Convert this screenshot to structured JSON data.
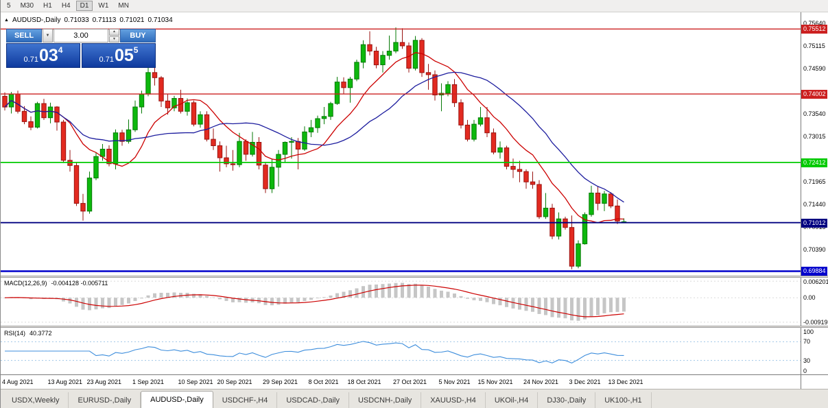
{
  "toolbar": {
    "timeframes": [
      {
        "label": "5",
        "active": false
      },
      {
        "label": "M30",
        "active": false
      },
      {
        "label": "H1",
        "active": false
      },
      {
        "label": "H4",
        "active": false
      },
      {
        "label": "D1",
        "active": true
      },
      {
        "label": "W1",
        "active": false
      },
      {
        "label": "MN",
        "active": false
      }
    ]
  },
  "header": {
    "symbol": "AUDUSD-,Daily",
    "open": "0.71033",
    "high": "0.71113",
    "low": "0.71021",
    "close": "0.71034"
  },
  "one_click": {
    "sell_label": "SELL",
    "buy_label": "BUY",
    "volume": "3.00",
    "sell_small": "0.71",
    "sell_big": "03",
    "sell_sup": "4",
    "buy_small": "0.71",
    "buy_big": "05",
    "buy_sup": "5"
  },
  "chart_data": {
    "type": "candlestick",
    "title": "AUDUSD-,Daily",
    "price_axis": {
      "min": 0.6978,
      "max": 0.759,
      "ticks": [
        {
          "label": "0.75640",
          "value": 0.7564
        },
        {
          "label": "0.75115",
          "value": 0.75115
        },
        {
          "label": "0.74590",
          "value": 0.7459
        },
        {
          "label": "0.73540",
          "value": 0.7354
        },
        {
          "label": "0.73015",
          "value": 0.73015
        },
        {
          "label": "0.71965",
          "value": 0.71965
        },
        {
          "label": "0.71440",
          "value": 0.7144
        },
        {
          "label": "0.70915",
          "value": 0.70915
        },
        {
          "label": "0.70390",
          "value": 0.7039
        }
      ]
    },
    "levels": [
      {
        "label": "0.75512",
        "value": 0.75512,
        "color": "#cc2020",
        "width": 1.4
      },
      {
        "label": "0.74002",
        "value": 0.74002,
        "color": "#cc2020",
        "width": 1.4
      },
      {
        "label": "0.72412",
        "value": 0.72412,
        "color": "#00ca00",
        "width": 1.8
      },
      {
        "label": "0.71012",
        "value": 0.71012,
        "color": "#000080",
        "width": 1.8
      },
      {
        "label": "0.69884",
        "value": 0.69884,
        "color": "#0000cc",
        "width": 2.6
      }
    ],
    "candles": [
      [
        0.7395,
        0.7404,
        0.7362,
        0.737
      ],
      [
        0.737,
        0.7405,
        0.7355,
        0.74
      ],
      [
        0.74,
        0.7408,
        0.7355,
        0.736
      ],
      [
        0.736,
        0.7372,
        0.733,
        0.7336
      ],
      [
        0.7336,
        0.7348,
        0.7316,
        0.7323
      ],
      [
        0.7323,
        0.7382,
        0.732,
        0.7378
      ],
      [
        0.7378,
        0.7389,
        0.734,
        0.7345
      ],
      [
        0.7345,
        0.738,
        0.7332,
        0.737
      ],
      [
        0.737,
        0.7372,
        0.7315,
        0.7335
      ],
      [
        0.7335,
        0.734,
        0.724,
        0.7246
      ],
      [
        0.7246,
        0.727,
        0.722,
        0.7234
      ],
      [
        0.7234,
        0.724,
        0.714,
        0.7146
      ],
      [
        0.7146,
        0.7168,
        0.7106,
        0.7128
      ],
      [
        0.7128,
        0.722,
        0.7122,
        0.7205
      ],
      [
        0.7205,
        0.7265,
        0.72,
        0.7255
      ],
      [
        0.7255,
        0.7284,
        0.7245,
        0.7272
      ],
      [
        0.7272,
        0.7281,
        0.7232,
        0.7238
      ],
      [
        0.7238,
        0.7318,
        0.7225,
        0.731
      ],
      [
        0.731,
        0.7317,
        0.728,
        0.729
      ],
      [
        0.729,
        0.7341,
        0.7285,
        0.7317
      ],
      [
        0.7317,
        0.7385,
        0.7312,
        0.737
      ],
      [
        0.737,
        0.7408,
        0.7355,
        0.74
      ],
      [
        0.74,
        0.7478,
        0.7395,
        0.745
      ],
      [
        0.745,
        0.7462,
        0.742,
        0.7438
      ],
      [
        0.7438,
        0.7442,
        0.737,
        0.7384
      ],
      [
        0.7384,
        0.74,
        0.7352,
        0.7368
      ],
      [
        0.7368,
        0.7396,
        0.736,
        0.739
      ],
      [
        0.739,
        0.741,
        0.7355,
        0.736
      ],
      [
        0.736,
        0.739,
        0.735,
        0.738
      ],
      [
        0.738,
        0.7385,
        0.7325,
        0.733
      ],
      [
        0.733,
        0.736,
        0.7322,
        0.7352
      ],
      [
        0.7352,
        0.736,
        0.729,
        0.7295
      ],
      [
        0.7295,
        0.732,
        0.727,
        0.728
      ],
      [
        0.728,
        0.729,
        0.722,
        0.7252
      ],
      [
        0.7252,
        0.728,
        0.723,
        0.7238
      ],
      [
        0.7238,
        0.727,
        0.7222,
        0.7236
      ],
      [
        0.7236,
        0.731,
        0.723,
        0.729
      ],
      [
        0.729,
        0.7295,
        0.7245,
        0.726
      ],
      [
        0.726,
        0.7312,
        0.7255,
        0.7288
      ],
      [
        0.7288,
        0.73,
        0.7225,
        0.7235
      ],
      [
        0.7235,
        0.724,
        0.717,
        0.718
      ],
      [
        0.718,
        0.725,
        0.717,
        0.723
      ],
      [
        0.723,
        0.727,
        0.7185,
        0.726
      ],
      [
        0.726,
        0.729,
        0.724,
        0.7288
      ],
      [
        0.7288,
        0.73,
        0.725,
        0.729
      ],
      [
        0.729,
        0.7298,
        0.7225,
        0.7272
      ],
      [
        0.7272,
        0.7325,
        0.7268,
        0.7312
      ],
      [
        0.7312,
        0.734,
        0.73,
        0.7322
      ],
      [
        0.7322,
        0.735,
        0.731,
        0.7343
      ],
      [
        0.7343,
        0.737,
        0.733,
        0.7348
      ],
      [
        0.7348,
        0.7382,
        0.734,
        0.7378
      ],
      [
        0.7378,
        0.744,
        0.7375,
        0.7428
      ],
      [
        0.7428,
        0.7439,
        0.74,
        0.7415
      ],
      [
        0.7415,
        0.744,
        0.738,
        0.7435
      ],
      [
        0.7435,
        0.748,
        0.743,
        0.7474
      ],
      [
        0.7474,
        0.7525,
        0.746,
        0.7515
      ],
      [
        0.7515,
        0.7546,
        0.749,
        0.75
      ],
      [
        0.75,
        0.751,
        0.746,
        0.7468
      ],
      [
        0.7468,
        0.75,
        0.745,
        0.749
      ],
      [
        0.749,
        0.7536,
        0.748,
        0.75
      ],
      [
        0.75,
        0.7555,
        0.7495,
        0.752
      ],
      [
        0.752,
        0.7553,
        0.7505,
        0.7512
      ],
      [
        0.7512,
        0.752,
        0.745,
        0.746
      ],
      [
        0.746,
        0.7535,
        0.7455,
        0.7525
      ],
      [
        0.7525,
        0.753,
        0.744,
        0.745
      ],
      [
        0.745,
        0.747,
        0.741,
        0.7445
      ],
      [
        0.7445,
        0.7455,
        0.7385,
        0.7398
      ],
      [
        0.7398,
        0.7425,
        0.736,
        0.7402
      ],
      [
        0.7402,
        0.743,
        0.7395,
        0.7422
      ],
      [
        0.7422,
        0.7435,
        0.737,
        0.738
      ],
      [
        0.738,
        0.7388,
        0.732,
        0.7328
      ],
      [
        0.7328,
        0.734,
        0.729,
        0.7295
      ],
      [
        0.7295,
        0.734,
        0.729,
        0.733
      ],
      [
        0.733,
        0.737,
        0.7325,
        0.7345
      ],
      [
        0.7345,
        0.737,
        0.73,
        0.731
      ],
      [
        0.731,
        0.732,
        0.726,
        0.7265
      ],
      [
        0.7265,
        0.729,
        0.725,
        0.7275
      ],
      [
        0.7275,
        0.728,
        0.7225,
        0.7232
      ],
      [
        0.7232,
        0.725,
        0.7205,
        0.7225
      ],
      [
        0.7225,
        0.7245,
        0.7195,
        0.722
      ],
      [
        0.722,
        0.7225,
        0.718,
        0.7196
      ],
      [
        0.7196,
        0.722,
        0.718,
        0.719
      ],
      [
        0.719,
        0.72,
        0.711,
        0.7115
      ],
      [
        0.7115,
        0.717,
        0.711,
        0.7135
      ],
      [
        0.7135,
        0.7145,
        0.7063,
        0.707
      ],
      [
        0.707,
        0.7125,
        0.7062,
        0.711
      ],
      [
        0.711,
        0.7115,
        0.7085,
        0.709
      ],
      [
        0.709,
        0.7118,
        0.6993,
        0.7
      ],
      [
        0.7,
        0.706,
        0.6995,
        0.7052
      ],
      [
        0.7052,
        0.7125,
        0.705,
        0.712
      ],
      [
        0.712,
        0.7187,
        0.7115,
        0.717
      ],
      [
        0.717,
        0.7185,
        0.713,
        0.7146
      ],
      [
        0.7146,
        0.7175,
        0.7128,
        0.7168
      ],
      [
        0.7168,
        0.7172,
        0.7135,
        0.714
      ],
      [
        0.714,
        0.7155,
        0.7098,
        0.7105
      ],
      [
        0.71033,
        0.71113,
        0.71021,
        0.71034
      ]
    ],
    "ma_fast_period": 10,
    "ma_slow_period": 21,
    "date_ticks": [
      {
        "label": "4 Aug 2021",
        "index": 0
      },
      {
        "label": "13 Aug 2021",
        "index": 7
      },
      {
        "label": "23 Aug 2021",
        "index": 13
      },
      {
        "label": "1 Sep 2021",
        "index": 20
      },
      {
        "label": "10 Sep 2021",
        "index": 27
      },
      {
        "label": "20 Sep 2021",
        "index": 33
      },
      {
        "label": "29 Sep 2021",
        "index": 40
      },
      {
        "label": "8 Oct 2021",
        "index": 47
      },
      {
        "label": "18 Oct 2021",
        "index": 53
      },
      {
        "label": "27 Oct 2021",
        "index": 60
      },
      {
        "label": "5 Nov 2021",
        "index": 67
      },
      {
        "label": "15 Nov 2021",
        "index": 73
      },
      {
        "label": "24 Nov 2021",
        "index": 80
      },
      {
        "label": "3 Dec 2021",
        "index": 87
      },
      {
        "label": "13 Dec 2021",
        "index": 93
      }
    ],
    "macd": {
      "label": "MACD(12,26,9)",
      "values_label": "-0.004128 -0.005711",
      "range": {
        "min": -0.0105,
        "max": 0.0075
      },
      "axis": [
        {
          "label": "0.006201",
          "value": 0.006201
        },
        {
          "label": "0.00",
          "value": 0
        },
        {
          "label": "-0.00919",
          "value": -0.00919
        }
      ]
    },
    "rsi": {
      "label": "RSI(14)",
      "value_label": "40.3772",
      "range": {
        "min": 0,
        "max": 100
      },
      "levels": [
        70,
        30
      ],
      "axis": [
        {
          "label": "100",
          "value": 100
        },
        {
          "label": "70",
          "value": 70
        },
        {
          "label": "30",
          "value": 30
        },
        {
          "label": "0",
          "value": 0
        }
      ]
    },
    "colors": {
      "bull_fill": "#0db80d",
      "bull_stroke": "#067a06",
      "bear_fill": "#e22a20",
      "bear_stroke": "#991310",
      "ma_fast": "#cc0000",
      "ma_slow": "#1c1c9e",
      "macd_hist": "#c6c6c6",
      "macd_signal": "#cc0000",
      "rsi_line": "#3c8ddc"
    }
  },
  "tabs": [
    {
      "label": "USDX,Weekly",
      "active": false
    },
    {
      "label": "EURUSD-,Daily",
      "active": false
    },
    {
      "label": "AUDUSD-,Daily",
      "active": true
    },
    {
      "label": "USDCHF-,H4",
      "active": false
    },
    {
      "label": "USDCAD-,Daily",
      "active": false
    },
    {
      "label": "USDCNH-,Daily",
      "active": false
    },
    {
      "label": "XAUUSD-,H4",
      "active": false
    },
    {
      "label": "UKOil-,H4",
      "active": false
    },
    {
      "label": "DJ30-,Daily",
      "active": false
    },
    {
      "label": "UK100-,H1",
      "active": false
    }
  ]
}
